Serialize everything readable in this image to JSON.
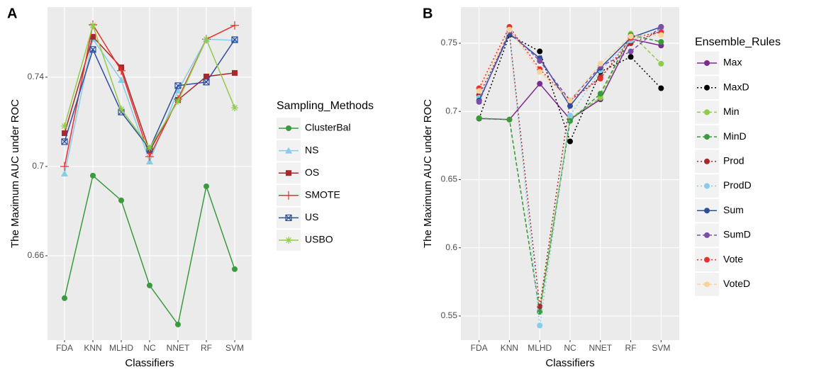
{
  "chart_data": [
    {
      "type": "line",
      "panel_label": "A",
      "xlabel": "Classifiers",
      "ylabel": "The Maximum AUC under ROC",
      "legend_title": "Sampling_Methods",
      "grid": true,
      "categories": [
        "FDA",
        "KNN",
        "MLHD",
        "NC",
        "NNET",
        "RF",
        "SVM"
      ],
      "ylim": [
        0.6222,
        0.7714
      ],
      "yticks": [
        0.66,
        0.7,
        0.74
      ],
      "series": [
        {
          "name": "ClusterBal",
          "color": "#3a9a3e",
          "marker": "circle",
          "dash": "solid",
          "values": [
            0.641,
            0.6959,
            0.6848,
            0.6467,
            0.6292,
            0.6911,
            0.654
          ]
        },
        {
          "name": "NS",
          "color": "#87cde8",
          "marker": "triangle",
          "dash": "solid",
          "values": [
            0.6968,
            0.7571,
            0.7387,
            0.7022,
            0.734,
            0.757,
            0.7565
          ]
        },
        {
          "name": "OS",
          "color": "#a8292c",
          "marker": "square",
          "dash": "solid",
          "values": [
            0.7149,
            0.7581,
            0.7444,
            0.707,
            0.7298,
            0.7403,
            0.7419
          ]
        },
        {
          "name": "SMOTE",
          "color": "#e8302e",
          "marker": "plus",
          "dash": "solid",
          "values": [
            0.7,
            0.7635,
            0.7429,
            0.7044,
            0.7302,
            0.757,
            0.7632
          ]
        },
        {
          "name": "US",
          "color": "#2f4d9e",
          "marker": "boxx",
          "dash": "solid",
          "values": [
            0.7111,
            0.7524,
            0.7244,
            0.7079,
            0.7362,
            0.7378,
            0.7568
          ]
        },
        {
          "name": "USBO",
          "color": "#8fcc4a",
          "marker": "star",
          "dash": "solid",
          "values": [
            0.7181,
            0.7632,
            0.7257,
            0.7083,
            0.7292,
            0.757,
            0.7263
          ]
        }
      ]
    },
    {
      "type": "line",
      "panel_label": "B",
      "xlabel": "Classifiers",
      "ylabel": "The Maximum AUC under ROC",
      "legend_title": "Ensemble_Rules",
      "grid": true,
      "categories": [
        "FDA",
        "KNN",
        "MLHD",
        "NC",
        "NNET",
        "RF",
        "SVM"
      ],
      "ylim": [
        0.5323,
        0.7765
      ],
      "yticks": [
        0.55,
        0.6,
        0.65,
        0.7,
        0.75
      ],
      "series": [
        {
          "name": "Max",
          "color": "#7b2d8f",
          "marker": "circle",
          "dash": "solid",
          "values": [
            0.6948,
            0.694,
            0.7203,
            0.6943,
            0.7088,
            0.7531,
            0.7483
          ]
        },
        {
          "name": "MaxD",
          "color": "#000000",
          "marker": "circle",
          "dash": "dotted",
          "values": [
            0.6948,
            0.756,
            0.744,
            0.678,
            0.729,
            0.74,
            0.717
          ]
        },
        {
          "name": "Min",
          "color": "#8fcc4a",
          "marker": "circle",
          "dash": "dashed",
          "values": [
            0.695,
            0.694,
            0.554,
            0.695,
            0.71,
            0.757,
            0.735
          ]
        },
        {
          "name": "MinD",
          "color": "#3a9a3e",
          "marker": "circle",
          "dash": "dashed",
          "values": [
            0.695,
            0.694,
            0.553,
            0.693,
            0.713,
            0.756,
            0.751
          ]
        },
        {
          "name": "Prod",
          "color": "#a8292c",
          "marker": "circle",
          "dash": "dotted",
          "values": [
            0.712,
            0.757,
            0.557,
            0.708,
            0.725,
            0.75,
            0.759
          ]
        },
        {
          "name": "ProdD",
          "color": "#87cde8",
          "marker": "circle",
          "dash": "dotted",
          "values": [
            0.71,
            0.757,
            0.543,
            0.697,
            0.73,
            0.752,
            0.76
          ]
        },
        {
          "name": "Sum",
          "color": "#2f4d9e",
          "marker": "circle",
          "dash": "solid",
          "values": [
            0.708,
            0.757,
            0.739,
            0.704,
            0.732,
            0.754,
            0.762
          ]
        },
        {
          "name": "SumD",
          "color": "#7b4fa8",
          "marker": "circle",
          "dash": "dashed",
          "values": [
            0.707,
            0.759,
            0.737,
            0.708,
            0.733,
            0.744,
            0.762
          ]
        },
        {
          "name": "Vote",
          "color": "#e8302e",
          "marker": "circle",
          "dash": "dotted",
          "values": [
            0.717,
            0.762,
            0.731,
            0.708,
            0.724,
            0.754,
            0.758
          ]
        },
        {
          "name": "VoteD",
          "color": "#f8d49a",
          "marker": "circle",
          "dash": "dashed",
          "values": [
            0.715,
            0.76,
            0.729,
            0.708,
            0.735,
            0.755,
            0.756
          ]
        }
      ]
    }
  ]
}
